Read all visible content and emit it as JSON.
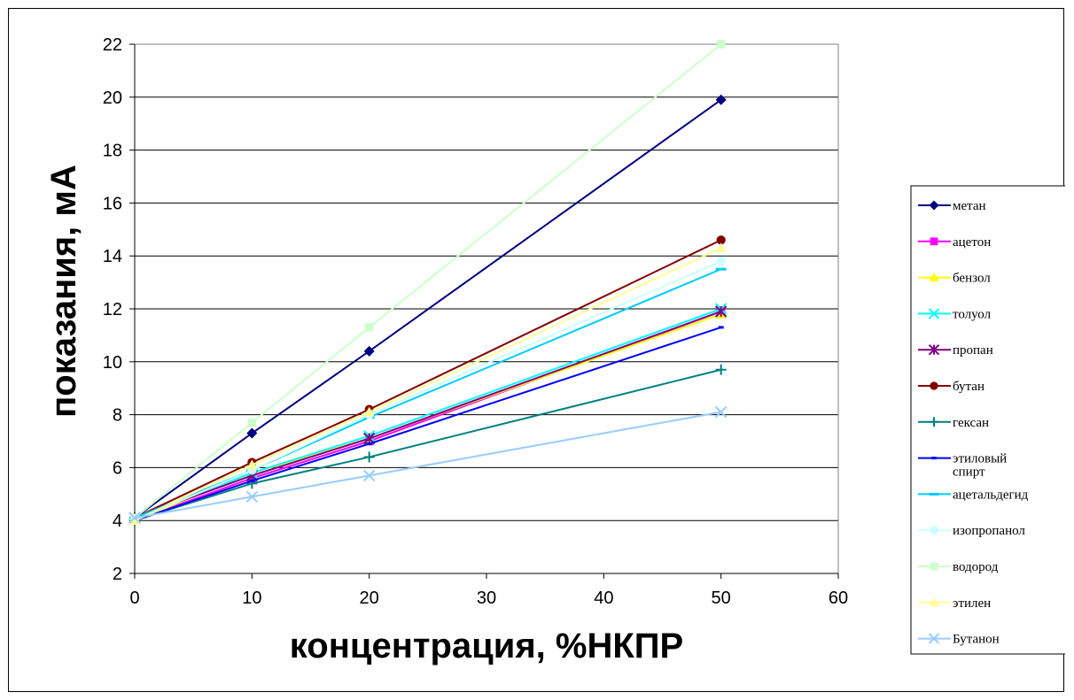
{
  "chart_data": {
    "type": "line",
    "title": "",
    "xlabel": "концентрация, %НКПР",
    "ylabel": "показания, мА",
    "xlim": [
      0,
      60
    ],
    "ylim": [
      2,
      22
    ],
    "x_ticks": [
      0,
      10,
      20,
      30,
      40,
      50,
      60
    ],
    "y_ticks": [
      2,
      4,
      6,
      8,
      10,
      12,
      14,
      16,
      18,
      20,
      22
    ],
    "grid": "horizontal",
    "legend_position": "right",
    "x": [
      0,
      10,
      20,
      50
    ],
    "series": [
      {
        "name": "метан",
        "color": "#000080",
        "marker": "diamond",
        "values": [
          4.1,
          7.3,
          10.4,
          19.9
        ]
      },
      {
        "name": "ацетон",
        "color": "#FF00FF",
        "marker": "square",
        "values": [
          4.0,
          5.6,
          7.0,
          11.9
        ]
      },
      {
        "name": "бензол",
        "color": "#FFFF00",
        "marker": "triangle",
        "values": [
          4.0,
          5.8,
          7.1,
          11.8
        ]
      },
      {
        "name": "толуол",
        "color": "#00FFFF",
        "marker": "x",
        "values": [
          4.1,
          5.8,
          7.2,
          12.0
        ]
      },
      {
        "name": "пропан",
        "color": "#800080",
        "marker": "star",
        "values": [
          4.1,
          5.7,
          7.1,
          11.9
        ]
      },
      {
        "name": "бутан",
        "color": "#800000",
        "marker": "circle",
        "values": [
          4.1,
          6.2,
          8.2,
          14.6
        ]
      },
      {
        "name": "гексан",
        "color": "#008080",
        "marker": "plus",
        "values": [
          4.0,
          5.4,
          6.4,
          9.7
        ]
      },
      {
        "name": "этиловый спирт",
        "color": "#0000FF",
        "marker": "dash",
        "values": [
          4.0,
          5.5,
          6.9,
          11.3
        ]
      },
      {
        "name": "ацетальдегид",
        "color": "#00CCFF",
        "marker": "bar",
        "values": [
          4.1,
          5.9,
          7.9,
          13.5
        ]
      },
      {
        "name": "изопропанол",
        "color": "#CCFFFF",
        "marker": "circle",
        "values": [
          4.0,
          5.9,
          8.0,
          13.8
        ]
      },
      {
        "name": "водород",
        "color": "#CCFFCC",
        "marker": "square",
        "values": [
          4.1,
          7.7,
          11.3,
          22.0
        ]
      },
      {
        "name": "этилен",
        "color": "#FFFF99",
        "marker": "triangle",
        "values": [
          4.0,
          6.1,
          8.1,
          14.3
        ]
      },
      {
        "name": "Бутанон",
        "color": "#99CCFF",
        "marker": "x",
        "values": [
          4.1,
          4.9,
          5.7,
          8.1
        ]
      }
    ]
  }
}
